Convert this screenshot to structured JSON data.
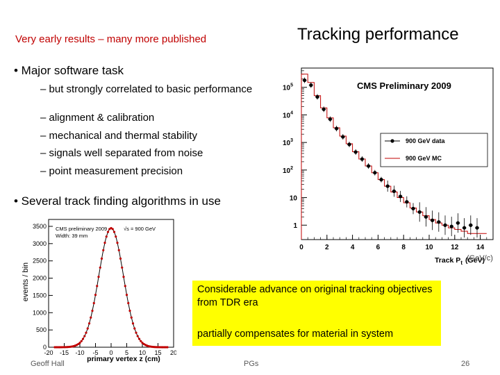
{
  "slide": {
    "subtitle": "Very early results – many more published",
    "title": "Tracking performance",
    "bullets": [
      {
        "text": "• Major software task",
        "sub": "– but strongly correlated to basic performance",
        "items": [
          "– alignment & calibration",
          "– mechanical and thermal stability",
          "– signals well separated from noise",
          "– point measurement precision"
        ]
      },
      {
        "text": "• Several track finding algorithms in use"
      }
    ],
    "callout": {
      "line1": "Considerable advance on original tracking objectives from TDR era",
      "line2": "partially compensates for material in system"
    },
    "footer": {
      "author": "Geoff Hall",
      "center": "PGs",
      "page": "26"
    },
    "colors": {
      "subtitle": "#c00000",
      "callout_bg": "#ffff00",
      "data": "#000000",
      "mc": "#c00000"
    }
  },
  "chart_data": [
    {
      "type": "line",
      "annotation": "CMS Preliminary 2009",
      "xlabel": "Track P",
      "xlabel_sub": "t",
      "xlabel_unit": "(GeV)",
      "xlabel_overlay": "(GeV/c)",
      "xlim": [
        0,
        15
      ],
      "ylim_log": [
        0.3,
        500000
      ],
      "log_y": true,
      "x_ticks": [
        0,
        2,
        4,
        6,
        8,
        10,
        12,
        14
      ],
      "y_ticks": [
        {
          "value": 1,
          "label": "1"
        },
        {
          "value": 10,
          "label": "10"
        },
        {
          "value": 100,
          "label": "10",
          "exp": "2"
        },
        {
          "value": 1000,
          "label": "10",
          "exp": "3"
        },
        {
          "value": 10000,
          "label": "10",
          "exp": "4"
        },
        {
          "value": 100000,
          "label": "10",
          "exp": "5"
        }
      ],
      "legend_position": "right",
      "series": [
        {
          "name": "900 GeV data",
          "x": [
            0.25,
            0.75,
            1.25,
            1.75,
            2.25,
            2.75,
            3.25,
            3.75,
            4.25,
            4.75,
            5.25,
            5.75,
            6.25,
            6.75,
            7.25,
            7.75,
            8.25,
            8.75,
            9.25,
            9.75,
            10.25,
            10.75,
            11.25,
            11.75,
            12.25,
            12.75,
            13.25,
            13.75
          ],
          "y": [
            180000,
            120000,
            45000,
            16000,
            7000,
            3200,
            1600,
            850,
            450,
            250,
            140,
            80,
            45,
            26,
            17,
            11,
            7,
            4,
            3,
            2,
            1.5,
            1.3,
            1,
            0.9,
            1.2,
            0.8,
            1,
            0.8
          ]
        },
        {
          "name": "900 GeV MC",
          "x": [
            0,
            0.5,
            1,
            1.5,
            2,
            2.5,
            3,
            3.5,
            4,
            4.5,
            5,
            5.5,
            6,
            6.5,
            7,
            7.5,
            8,
            8.5,
            9,
            9.5,
            10,
            10.5,
            11,
            11.5,
            12,
            12.5,
            13,
            13.5,
            14
          ],
          "y": [
            300000,
            150000,
            50000,
            18000,
            7800,
            3400,
            1700,
            900,
            460,
            250,
            140,
            80,
            45,
            26,
            16,
            10,
            6.5,
            4.2,
            3,
            2.2,
            1.6,
            1.2,
            1,
            0.8,
            0.7,
            0.6,
            0.5,
            0.5,
            0.5
          ]
        }
      ]
    },
    {
      "type": "scatter",
      "annotation": "CMS preliminary 2009",
      "annotation2": "√s = 900 GeV",
      "annotation3": "Width:  39 mm",
      "xlabel": "primary vertex z (cm)",
      "ylabel": "events / bin",
      "xlim": [
        -20,
        20
      ],
      "ylim": [
        0,
        3700
      ],
      "x_ticks": [
        -20,
        -15,
        -10,
        -5,
        0,
        5,
        10,
        15,
        20
      ],
      "y_ticks": [
        0,
        500,
        1000,
        1500,
        2000,
        2500,
        3000,
        3500
      ],
      "series": [
        {
          "name": "",
          "mu": 0,
          "sigma": 3.9,
          "peak": 3450,
          "step": 0.5
        }
      ]
    }
  ]
}
